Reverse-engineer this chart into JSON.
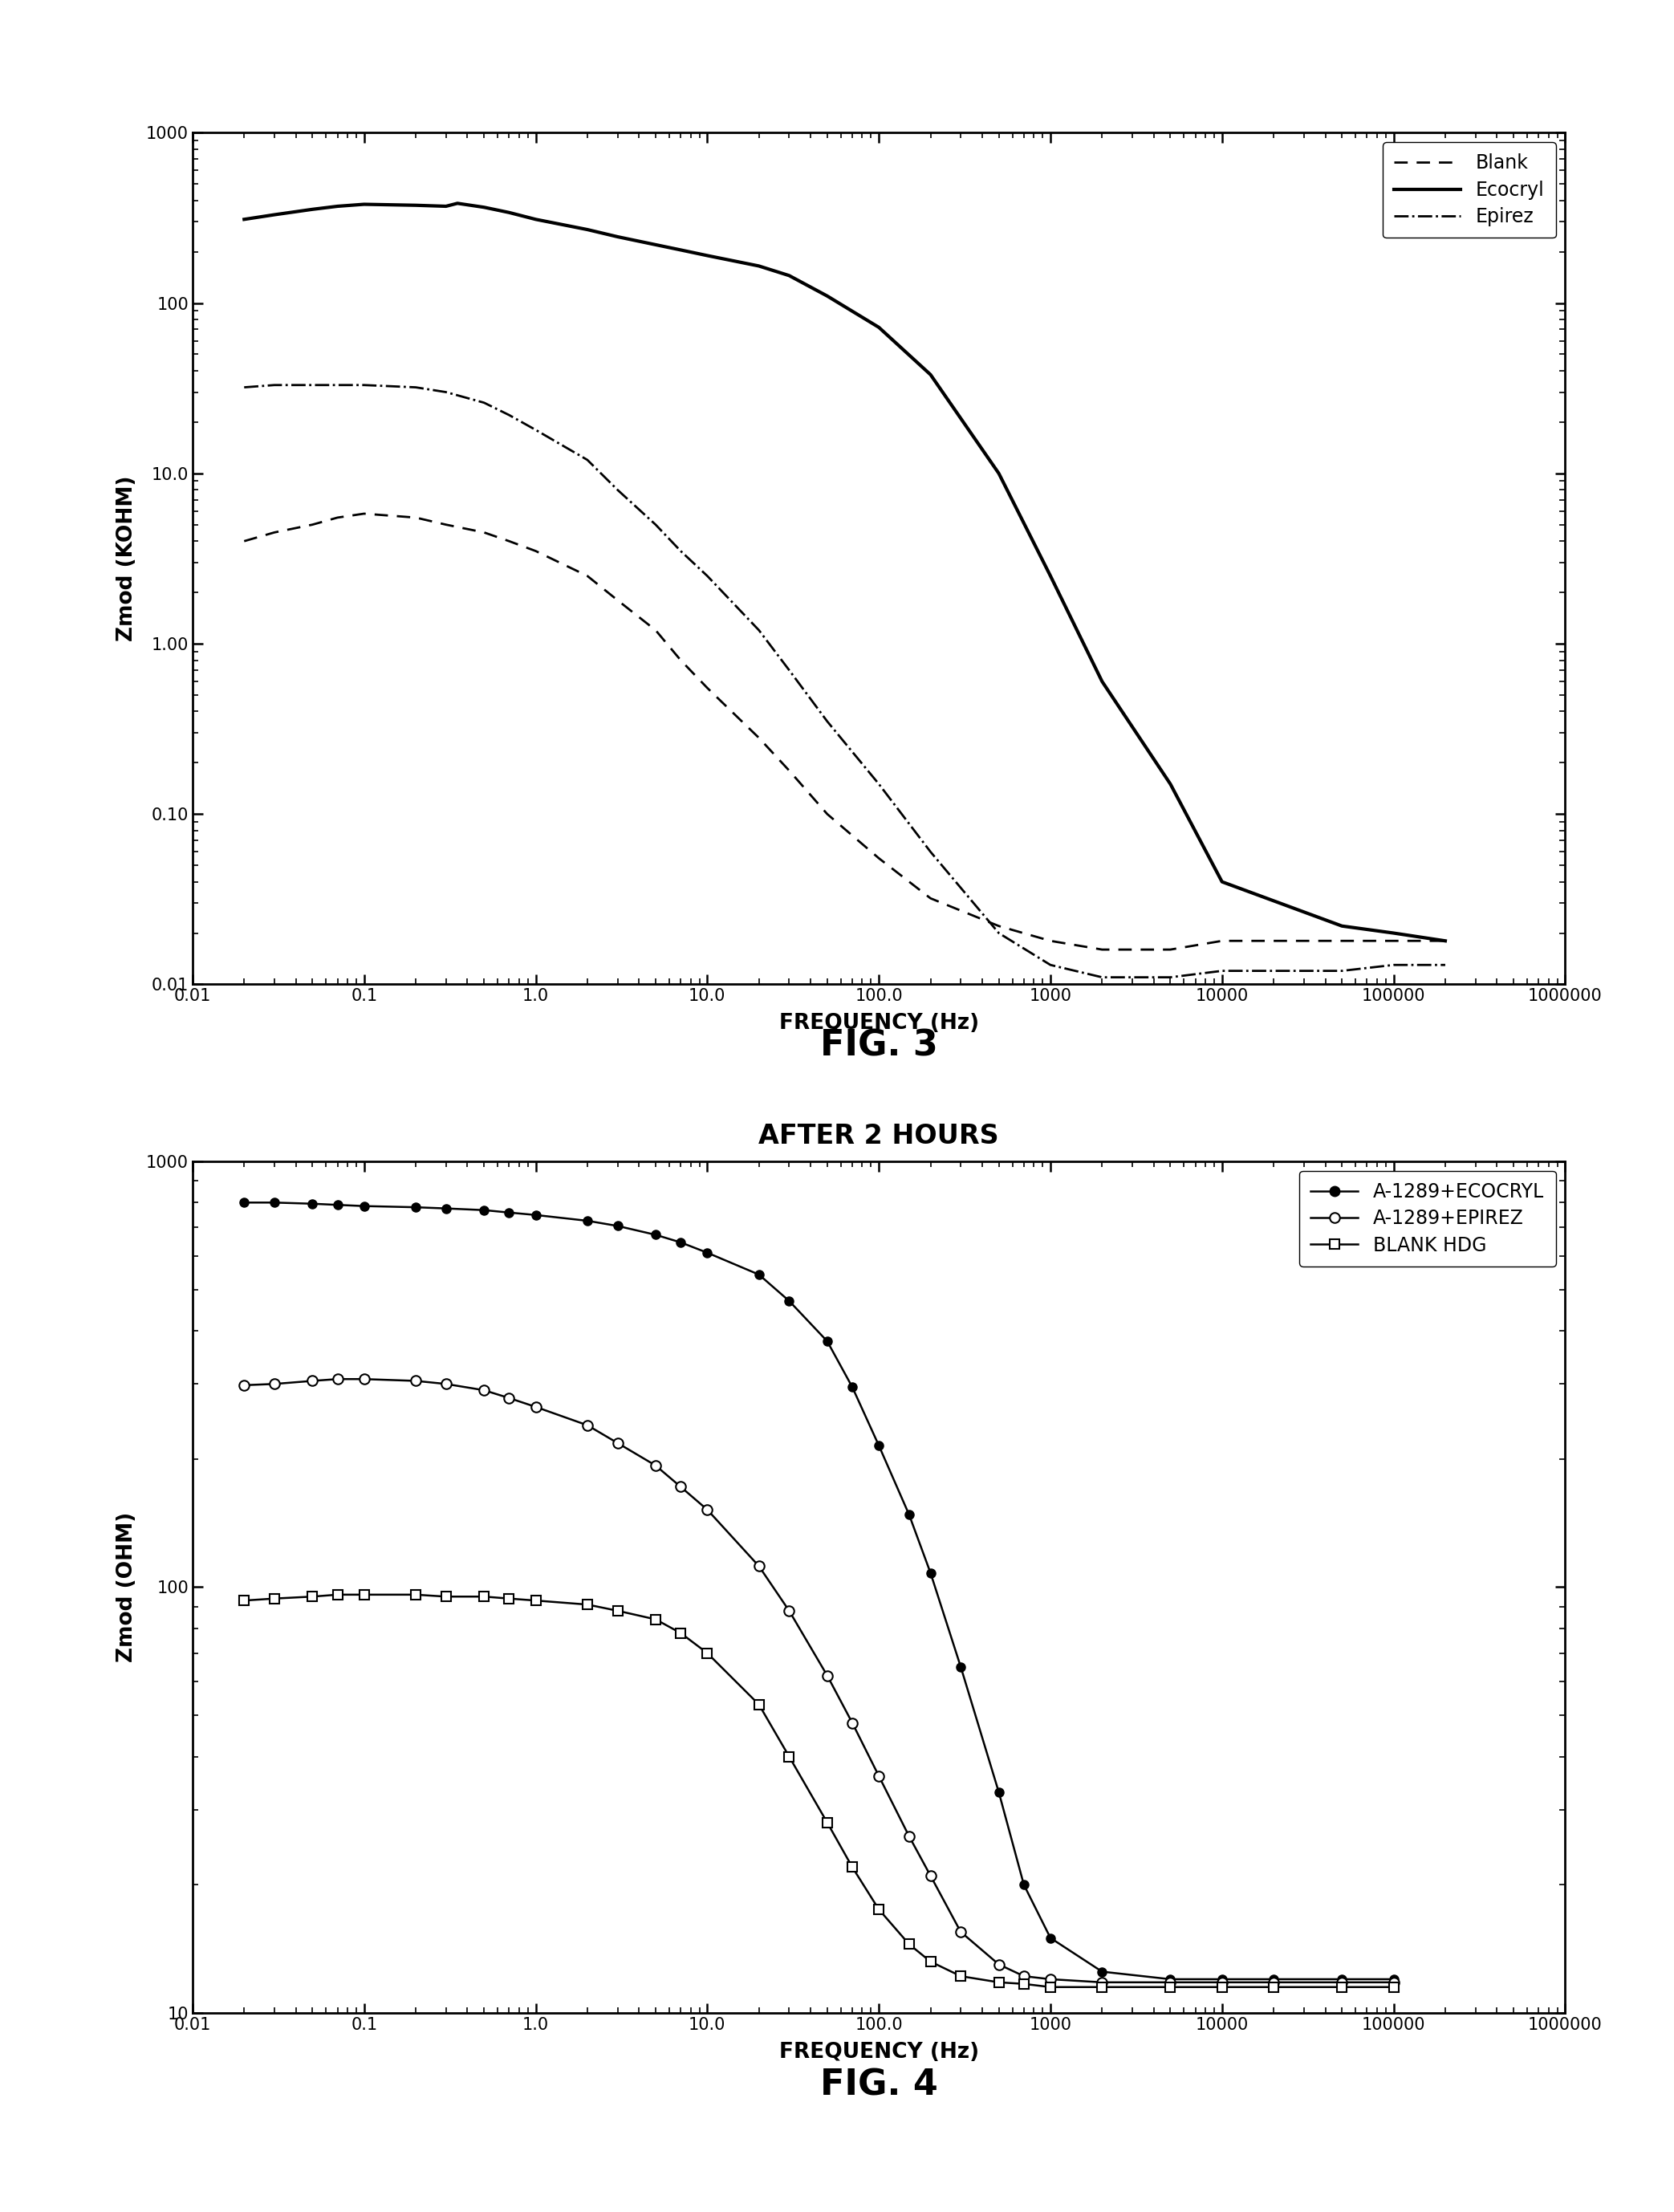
{
  "fig3": {
    "title": "FIG. 3",
    "xlabel": "FREQUENCY (Hz)",
    "ylabel": "Zmod (KOHM)",
    "xlim": [
      0.01,
      1000000
    ],
    "ylim": [
      0.01,
      1000
    ],
    "blank": {
      "freq": [
        0.02,
        0.03,
        0.05,
        0.07,
        0.1,
        0.2,
        0.3,
        0.5,
        0.7,
        1.0,
        2.0,
        3.0,
        5.0,
        7.0,
        10.0,
        20.0,
        30.0,
        50.0,
        100.0,
        200.0,
        500.0,
        1000.0,
        2000.0,
        5000.0,
        10000.0,
        50000.0,
        100000.0,
        200000.0
      ],
      "zmod": [
        4.0,
        4.5,
        5.0,
        5.5,
        5.8,
        5.5,
        5.0,
        4.5,
        4.0,
        3.5,
        2.5,
        1.8,
        1.2,
        0.8,
        0.55,
        0.28,
        0.18,
        0.1,
        0.055,
        0.032,
        0.022,
        0.018,
        0.016,
        0.016,
        0.018,
        0.018,
        0.018,
        0.018
      ]
    },
    "ecocryl": {
      "freq": [
        0.02,
        0.03,
        0.05,
        0.07,
        0.1,
        0.2,
        0.3,
        0.35,
        0.5,
        0.7,
        1.0,
        2.0,
        3.0,
        5.0,
        7.0,
        10.0,
        20.0,
        30.0,
        50.0,
        100.0,
        200.0,
        500.0,
        1000.0,
        2000.0,
        5000.0,
        10000.0,
        50000.0,
        100000.0,
        200000.0
      ],
      "zmod": [
        310.0,
        330.0,
        355.0,
        370.0,
        380.0,
        375.0,
        370.0,
        385.0,
        365.0,
        340.0,
        310.0,
        270.0,
        245.0,
        220.0,
        205.0,
        190.0,
        165.0,
        145.0,
        110.0,
        72.0,
        38.0,
        10.0,
        2.5,
        0.6,
        0.15,
        0.04,
        0.022,
        0.02,
        0.018
      ]
    },
    "epirez": {
      "freq": [
        0.02,
        0.03,
        0.05,
        0.07,
        0.1,
        0.2,
        0.3,
        0.5,
        0.7,
        1.0,
        2.0,
        3.0,
        5.0,
        7.0,
        10.0,
        20.0,
        30.0,
        50.0,
        100.0,
        200.0,
        500.0,
        1000.0,
        2000.0,
        5000.0,
        10000.0,
        50000.0,
        100000.0,
        200000.0
      ],
      "zmod": [
        32.0,
        33.0,
        33.0,
        33.0,
        33.0,
        32.0,
        30.0,
        26.0,
        22.0,
        18.0,
        12.0,
        8.0,
        5.0,
        3.5,
        2.5,
        1.2,
        0.7,
        0.35,
        0.15,
        0.06,
        0.02,
        0.013,
        0.011,
        0.011,
        0.012,
        0.012,
        0.013,
        0.013
      ]
    }
  },
  "fig4": {
    "title": "AFTER 2 HOURS",
    "fig_label": "FIG. 4",
    "xlabel": "FREQUENCY (Hz)",
    "ylabel": "Zmod (OHM)",
    "xlim": [
      0.01,
      1000000
    ],
    "ylim": [
      10,
      1000
    ],
    "ecocryl": {
      "freq": [
        0.02,
        0.03,
        0.05,
        0.07,
        0.1,
        0.2,
        0.3,
        0.5,
        0.7,
        1.0,
        2.0,
        3.0,
        5.0,
        7.0,
        10.0,
        20.0,
        30.0,
        50.0,
        70.0,
        100.0,
        150.0,
        200.0,
        300.0,
        500.0,
        700.0,
        1000.0,
        2000.0,
        5000.0,
        10000.0,
        20000.0,
        50000.0,
        100000.0
      ],
      "zmod": [
        800.0,
        800.0,
        795.0,
        790.0,
        785.0,
        780.0,
        775.0,
        768.0,
        758.0,
        748.0,
        725.0,
        705.0,
        672.0,
        645.0,
        610.0,
        542.0,
        470.0,
        378.0,
        295.0,
        215.0,
        148.0,
        108.0,
        65.0,
        33.0,
        20.0,
        15.0,
        12.5,
        12.0,
        12.0,
        12.0,
        12.0,
        12.0
      ]
    },
    "epirez": {
      "freq": [
        0.02,
        0.03,
        0.05,
        0.07,
        0.1,
        0.2,
        0.3,
        0.5,
        0.7,
        1.0,
        2.0,
        3.0,
        5.0,
        7.0,
        10.0,
        20.0,
        30.0,
        50.0,
        70.0,
        100.0,
        150.0,
        200.0,
        300.0,
        500.0,
        700.0,
        1000.0,
        2000.0,
        5000.0,
        10000.0,
        20000.0,
        50000.0,
        100000.0
      ],
      "zmod": [
        298.0,
        300.0,
        305.0,
        308.0,
        308.0,
        305.0,
        300.0,
        290.0,
        278.0,
        265.0,
        240.0,
        218.0,
        193.0,
        172.0,
        152.0,
        112.0,
        88.0,
        62.0,
        48.0,
        36.0,
        26.0,
        21.0,
        15.5,
        13.0,
        12.2,
        12.0,
        11.8,
        11.8,
        11.8,
        11.8,
        11.8,
        11.8
      ]
    },
    "blank": {
      "freq": [
        0.02,
        0.03,
        0.05,
        0.07,
        0.1,
        0.2,
        0.3,
        0.5,
        0.7,
        1.0,
        2.0,
        3.0,
        5.0,
        7.0,
        10.0,
        20.0,
        30.0,
        50.0,
        70.0,
        100.0,
        150.0,
        200.0,
        300.0,
        500.0,
        700.0,
        1000.0,
        2000.0,
        5000.0,
        10000.0,
        20000.0,
        50000.0,
        100000.0
      ],
      "zmod": [
        93.0,
        94.0,
        95.0,
        96.0,
        96.0,
        96.0,
        95.0,
        95.0,
        94.0,
        93.0,
        91.0,
        88.0,
        84.0,
        78.0,
        70.0,
        53.0,
        40.0,
        28.0,
        22.0,
        17.5,
        14.5,
        13.2,
        12.2,
        11.8,
        11.7,
        11.5,
        11.5,
        11.5,
        11.5,
        11.5,
        11.5,
        11.5
      ]
    }
  },
  "background_color": "#ffffff",
  "line_color": "#000000",
  "xtick_locs": [
    0.01,
    0.1,
    1.0,
    10.0,
    100.0,
    1000.0,
    10000.0,
    100000.0,
    1000000.0
  ],
  "xtick_labels": [
    "0.01",
    "0.1",
    "1.0",
    "10.0",
    "100.0",
    "1000",
    "10000",
    "100000",
    "1000000"
  ],
  "fig3_ytick_locs": [
    0.01,
    0.1,
    1.0,
    10.0,
    100.0,
    1000.0
  ],
  "fig3_ytick_labels": [
    "0.01",
    "0.10",
    "1.00",
    "10.0",
    "100",
    "1000"
  ],
  "fig4_ytick_locs": [
    10.0,
    100.0,
    1000.0
  ],
  "fig4_ytick_labels": [
    "10",
    "100",
    "1000"
  ]
}
